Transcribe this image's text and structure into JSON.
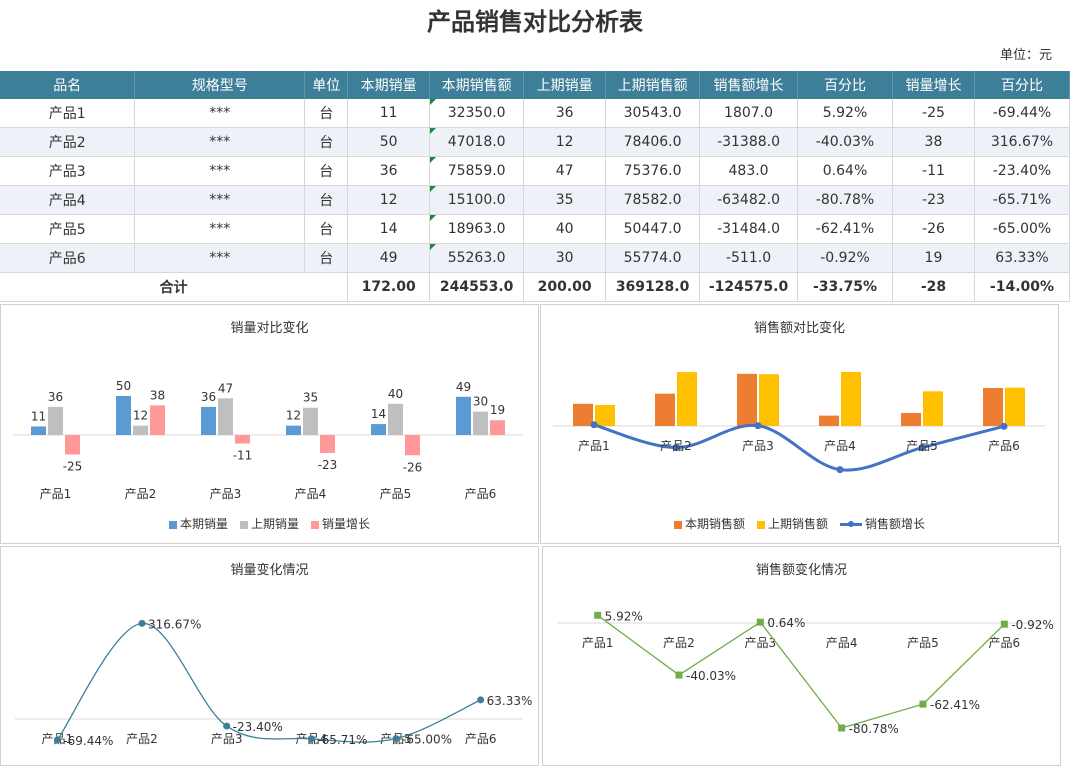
{
  "title": "产品销售对比分析表",
  "unit": "单位：元",
  "table": {
    "headers": [
      "品名",
      "规格型号",
      "单位",
      "本期销量",
      "本期销售额",
      "上期销量",
      "上期销售额",
      "销售额增长",
      "百分比",
      "销量增长",
      "百分比"
    ],
    "rows": [
      [
        "产品1",
        "***",
        "台",
        "11",
        "32350.0",
        "36",
        "30543.0",
        "1807.0",
        "5.92%",
        "-25",
        "-69.44%"
      ],
      [
        "产品2",
        "***",
        "台",
        "50",
        "47018.0",
        "12",
        "78406.0",
        "-31388.0",
        "-40.03%",
        "38",
        "316.67%"
      ],
      [
        "产品3",
        "***",
        "台",
        "36",
        "75859.0",
        "47",
        "75376.0",
        "483.0",
        "0.64%",
        "-11",
        "-23.40%"
      ],
      [
        "产品4",
        "***",
        "台",
        "12",
        "15100.0",
        "35",
        "78582.0",
        "-63482.0",
        "-80.78%",
        "-23",
        "-65.71%"
      ],
      [
        "产品5",
        "***",
        "台",
        "14",
        "18963.0",
        "40",
        "50447.0",
        "-31484.0",
        "-62.41%",
        "-26",
        "-65.00%"
      ],
      [
        "产品6",
        "***",
        "台",
        "49",
        "55263.0",
        "30",
        "55774.0",
        "-511.0",
        "-0.92%",
        "19",
        "63.33%"
      ]
    ],
    "total": {
      "label": "合计",
      "values": [
        "172.00",
        "244553.0",
        "200.00",
        "369128.0",
        "-124575.0",
        "-33.75%",
        "-28",
        "-14.00%"
      ]
    }
  },
  "chart_data": [
    {
      "type": "bar",
      "title": "销量对比变化",
      "categories": [
        "产品1",
        "产品2",
        "产品3",
        "产品4",
        "产品5",
        "产品6"
      ],
      "series": [
        {
          "name": "本期销量",
          "values": [
            11,
            50,
            36,
            12,
            14,
            49
          ],
          "color": "#5b9bd5"
        },
        {
          "name": "上期销量",
          "values": [
            36,
            12,
            47,
            35,
            40,
            30
          ],
          "color": "#bfbfbf"
        },
        {
          "name": "销量增长",
          "values": [
            -25,
            38,
            -11,
            -23,
            -26,
            19
          ],
          "color": "#ff9999"
        }
      ],
      "legend": "bottom"
    },
    {
      "type": "bar",
      "title": "销售额对比变化",
      "categories": [
        "产品1",
        "产品2",
        "产品3",
        "产品4",
        "产品5",
        "产品6"
      ],
      "series": [
        {
          "name": "本期销售额",
          "values": [
            32350,
            47018,
            75859,
            15100,
            18963,
            55263
          ],
          "color": "#ed7d31"
        },
        {
          "name": "上期销售额",
          "values": [
            30543,
            78406,
            75376,
            78582,
            50447,
            55774
          ],
          "color": "#ffc000"
        },
        {
          "name": "销售额增长",
          "values": [
            1807,
            -31388,
            483,
            -63482,
            -31484,
            -511
          ],
          "color": "#4472c4",
          "mark": "line"
        }
      ],
      "legend": "bottom"
    },
    {
      "type": "line",
      "title": "销量变化情况",
      "categories": [
        "产品1",
        "产品2",
        "产品3",
        "产品4",
        "产品5",
        "产品6"
      ],
      "series": [
        {
          "values": [
            -69.44,
            316.67,
            -23.4,
            -65.71,
            -65.0,
            63.33
          ],
          "color": "#3d7f98"
        }
      ],
      "labels": [
        "-69.44%",
        "316.67%",
        "-23.40%",
        "-65.71%",
        "-65.00%",
        "63.33%"
      ]
    },
    {
      "type": "line",
      "title": "销售额变化情况",
      "categories": [
        "产品1",
        "产品2",
        "产品3",
        "产品4",
        "产品5",
        "产品6"
      ],
      "series": [
        {
          "values": [
            5.92,
            -40.03,
            0.64,
            -80.78,
            -62.41,
            -0.92
          ],
          "color": "#70ad47"
        }
      ],
      "labels": [
        "5.92%",
        "-40.03%",
        "0.64%",
        "-80.78%",
        "-62.41%",
        "-0.92%"
      ]
    }
  ]
}
